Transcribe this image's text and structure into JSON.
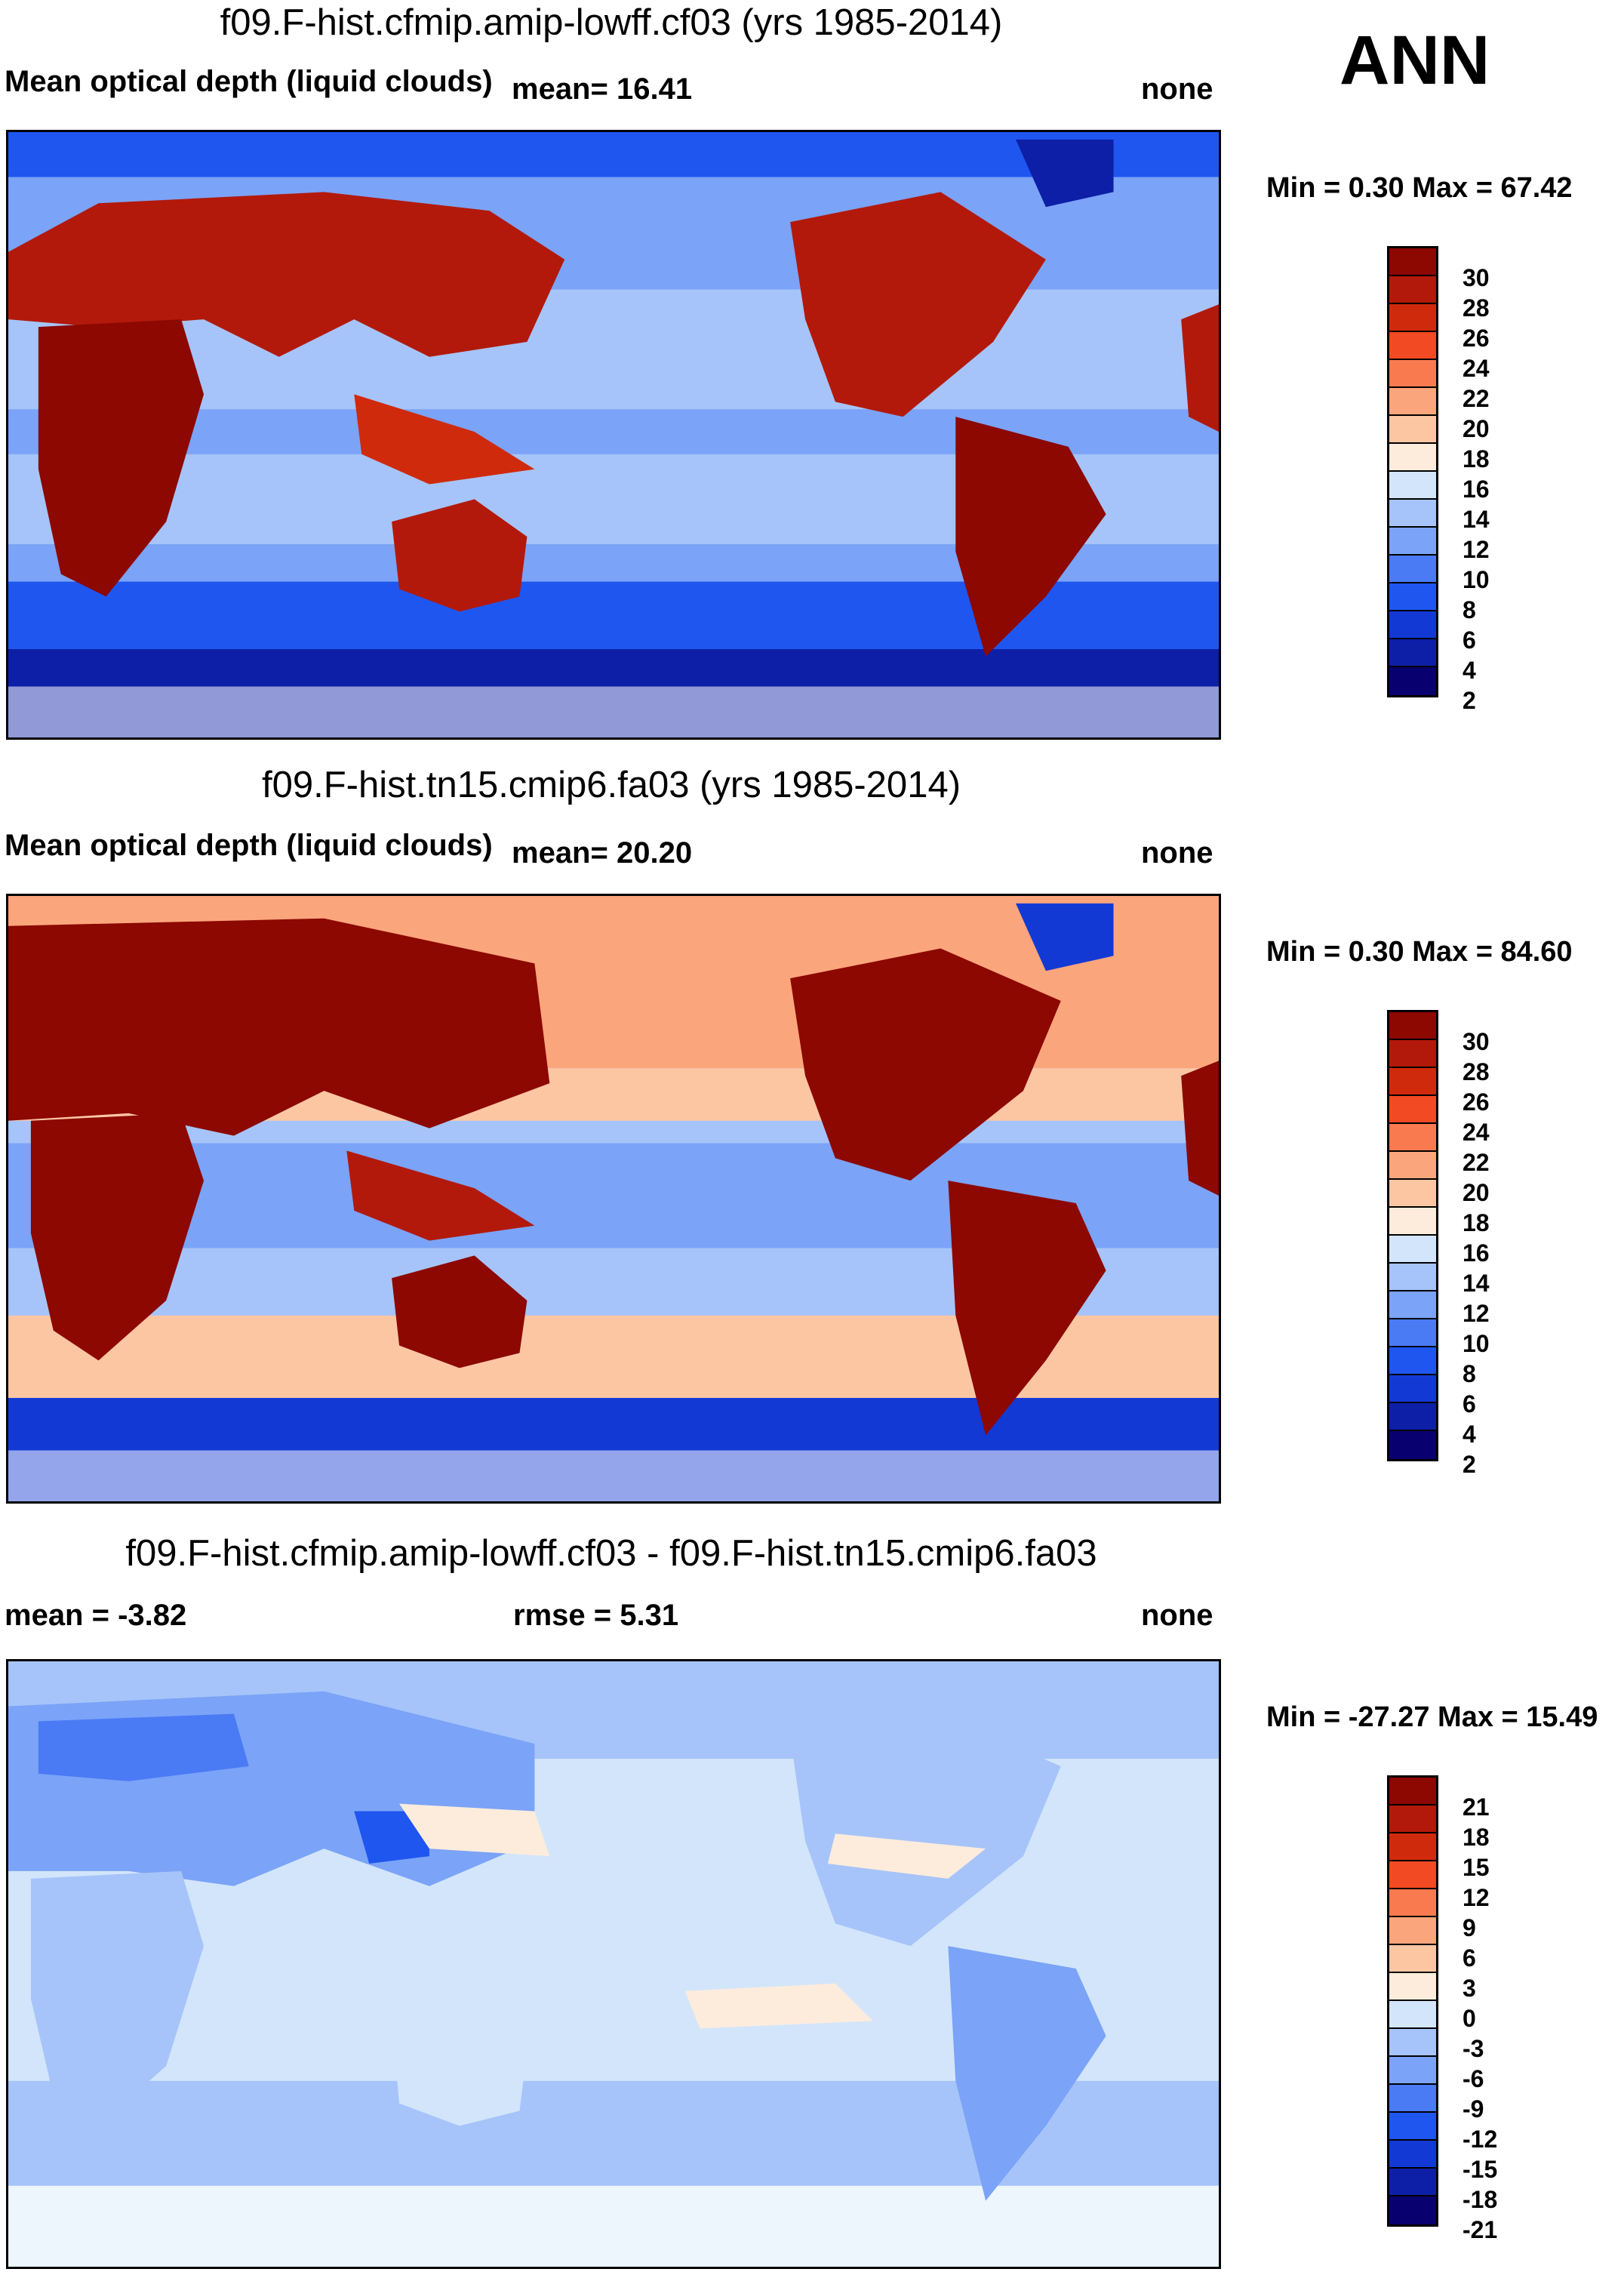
{
  "season_label": "ANN",
  "colors_abs": [
    "#08006e",
    "#0c1fa6",
    "#1339d4",
    "#1f56f0",
    "#4a7bf5",
    "#7ba3f7",
    "#a6c4f9",
    "#d2e5fb",
    "#fdecdc",
    "#fcc6a3",
    "#fba57c",
    "#fa7a50",
    "#f24a23",
    "#d02a0c",
    "#b3190a",
    "#8c0800"
  ],
  "colors_diff": [
    "#08006e",
    "#0c1fa6",
    "#1339d4",
    "#1f56f0",
    "#4a7bf5",
    "#7ba3f7",
    "#a6c4f9",
    "#d2e5fb",
    "#fdecdc",
    "#fcc6a3",
    "#fba57c",
    "#fa7a50",
    "#f24a23",
    "#d02a0c",
    "#b3190a",
    "#8c0800"
  ],
  "panels": [
    {
      "title": "f09.F-hist.cfmip.amip-lowff.cf03 (yrs 1985-2014)",
      "variable": "Mean optical depth (liquid clouds)",
      "stat": "mean=  16.41",
      "units": "none",
      "minmax": "Min =   0.30 Max =  67.42",
      "levels": [
        "30",
        "28",
        "26",
        "24",
        "22",
        "20",
        "18",
        "16",
        "14",
        "12",
        "10",
        "8",
        "6",
        "4",
        "2"
      ]
    },
    {
      "title": "f09.F-hist.tn15.cmip6.fa03 (yrs 1985-2014)",
      "variable": "Mean optical depth (liquid clouds)",
      "stat": "mean=  20.20",
      "units": "none",
      "minmax": "Min =   0.30 Max =  84.60",
      "levels": [
        "30",
        "28",
        "26",
        "24",
        "22",
        "20",
        "18",
        "16",
        "14",
        "12",
        "10",
        "8",
        "6",
        "4",
        "2"
      ]
    },
    {
      "title": "f09.F-hist.cfmip.amip-lowff.cf03 - f09.F-hist.tn15.cmip6.fa03",
      "variable": "mean =  -3.82",
      "stat": "rmse =    5.31",
      "units": "none",
      "minmax": "Min = -27.27 Max =  15.49",
      "levels": [
        "21",
        "18",
        "15",
        "12",
        "9",
        "6",
        "3",
        "0",
        "-3",
        "-6",
        "-9",
        "-12",
        "-15",
        "-18",
        "-21"
      ]
    }
  ]
}
